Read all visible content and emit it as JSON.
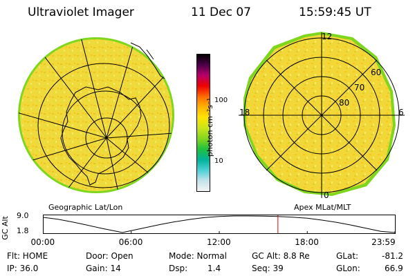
{
  "header": {
    "instrument": "Ultraviolet Imager",
    "date": "11 Dec 07",
    "time": "15:59:45 UT"
  },
  "left_panel": {
    "caption": "Geographic Lat/Lon"
  },
  "right_panel": {
    "caption": "Apex MLat/MLT",
    "mlt_labels": {
      "top": "12",
      "bottom": "0",
      "left": "18",
      "right": "6"
    },
    "lat_labels": [
      "60",
      "70",
      "80"
    ]
  },
  "colorbar": {
    "unit_label": "photon cm⁻²s⁻¹",
    "ticks": [
      "100",
      "10"
    ],
    "colors": [
      "#f4f4f4",
      "#bfe2e9",
      "#4fd2d8",
      "#00b39a",
      "#22c23c",
      "#7fd61e",
      "#c8e41a",
      "#ffe300",
      "#ffb000",
      "#ff6e00",
      "#ee0000",
      "#b4006a",
      "#50004a",
      "#000000"
    ]
  },
  "altitude_plot": {
    "axis_title": "GC Alt",
    "y_ticks": [
      "9.0",
      "1.8"
    ],
    "x_ticks": [
      "00:00",
      "06:00",
      "12:00",
      "18:00",
      "23:59"
    ],
    "y_range": [
      1.8,
      9.0
    ],
    "x_range_hours": [
      0,
      24
    ],
    "current_hour": 16.0,
    "orbit_series": [
      {
        "h": 0.0,
        "alt": 8.4
      },
      {
        "h": 1.0,
        "alt": 7.6
      },
      {
        "h": 2.0,
        "alt": 6.4
      },
      {
        "h": 3.0,
        "alt": 5.0
      },
      {
        "h": 4.0,
        "alt": 3.6
      },
      {
        "h": 5.0,
        "alt": 2.3
      },
      {
        "h": 5.4,
        "alt": 1.8
      },
      {
        "h": 6.0,
        "alt": 2.6
      },
      {
        "h": 7.0,
        "alt": 4.0
      },
      {
        "h": 8.0,
        "alt": 5.3
      },
      {
        "h": 9.0,
        "alt": 6.5
      },
      {
        "h": 10.0,
        "alt": 7.5
      },
      {
        "h": 11.0,
        "alt": 8.3
      },
      {
        "h": 12.0,
        "alt": 8.8
      },
      {
        "h": 13.0,
        "alt": 9.0
      },
      {
        "h": 14.0,
        "alt": 9.0
      },
      {
        "h": 15.0,
        "alt": 8.9
      },
      {
        "h": 16.0,
        "alt": 8.8
      },
      {
        "h": 17.0,
        "alt": 8.5
      },
      {
        "h": 18.0,
        "alt": 8.0
      },
      {
        "h": 19.0,
        "alt": 7.2
      },
      {
        "h": 20.0,
        "alt": 6.2
      },
      {
        "h": 21.0,
        "alt": 5.0
      },
      {
        "h": 22.0,
        "alt": 3.7
      },
      {
        "h": 23.0,
        "alt": 2.3
      },
      {
        "h": 23.98,
        "alt": 1.8
      }
    ]
  },
  "status": {
    "filter": "Flt: HOME",
    "ip": "IP: 36.0",
    "door": "Door: Open",
    "gain": "Gain: 14",
    "mode": "Mode: Normal",
    "dsp_label": "Dsp:",
    "dsp_value": "1.4",
    "gc_alt": "GC Alt: 8.8 Re",
    "seq": "Seq: 39",
    "glat_label": "GLat:",
    "glat_value": "-81.2",
    "glon_label": "GLon:",
    "glon_value": "66.9"
  }
}
